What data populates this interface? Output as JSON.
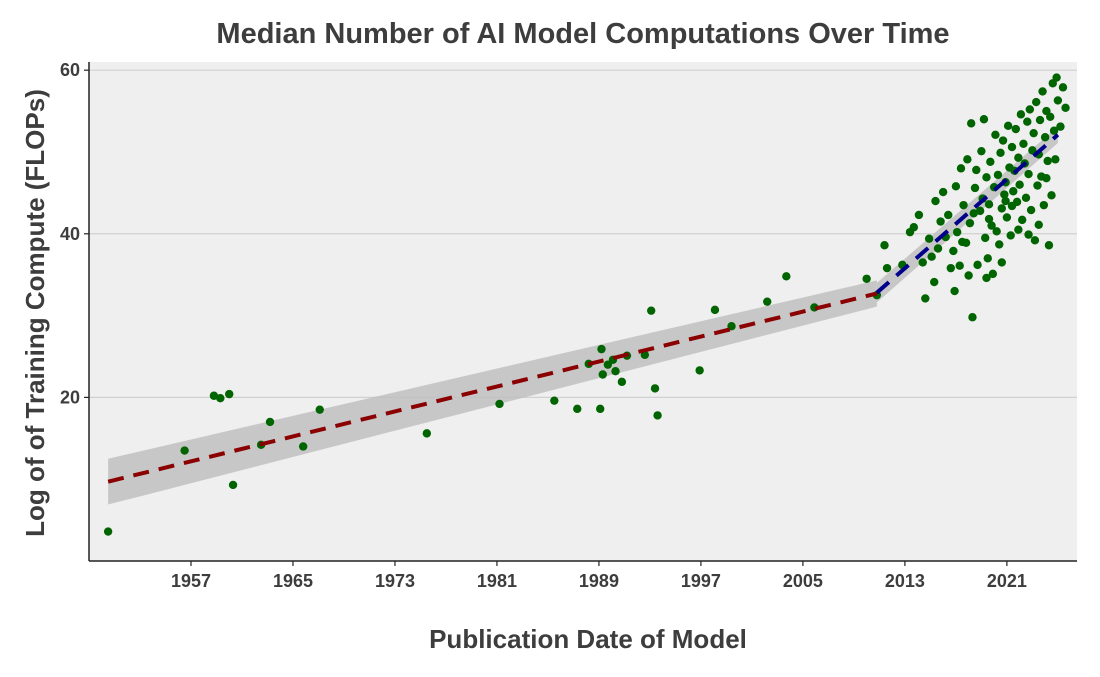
{
  "chart_data": {
    "type": "scatter",
    "title": "Median Number of AI Model Computations Over Time",
    "xlabel": "Publication Date of Model",
    "ylabel": "Log of of Training Compute (FLOPs)",
    "x_ticks": [
      "1957",
      "1965",
      "1973",
      "1981",
      "1989",
      "1997",
      "2005",
      "2013",
      "2021"
    ],
    "y_ticks": [
      "20",
      "40",
      "60"
    ],
    "xlim": [
      1949,
      2026.5
    ],
    "ylim": [
      0,
      61
    ],
    "grid": "horizontal",
    "colors": {
      "background": "#efefef",
      "grid": "#d0d0d0",
      "points": "#006400",
      "trend_early": "#8b0000",
      "trend_recent": "#00008b",
      "confidence_band": "#c0c0c0"
    },
    "series": [
      {
        "type": "scatter",
        "points": [
          [
            1950.5,
            3.6
          ],
          [
            1956.5,
            13.5
          ],
          [
            1958.8,
            20.2
          ],
          [
            1959.3,
            19.9
          ],
          [
            1960.0,
            20.4
          ],
          [
            1960.3,
            9.3
          ],
          [
            1962.5,
            14.2
          ],
          [
            1963.2,
            17.0
          ],
          [
            1965.8,
            14.0
          ],
          [
            1967.1,
            18.5
          ],
          [
            1975.5,
            15.6
          ],
          [
            1981.2,
            19.2
          ],
          [
            1985.5,
            19.6
          ],
          [
            1987.3,
            18.6
          ],
          [
            1988.2,
            24.1
          ],
          [
            1989.1,
            18.6
          ],
          [
            1989.2,
            25.9
          ],
          [
            1989.3,
            22.8
          ],
          [
            1989.7,
            24.0
          ],
          [
            1990.1,
            24.6
          ],
          [
            1990.3,
            23.2
          ],
          [
            1990.8,
            21.9
          ],
          [
            1991.2,
            25.1
          ],
          [
            1992.6,
            25.2
          ],
          [
            1993.1,
            30.6
          ],
          [
            1993.4,
            21.1
          ],
          [
            1993.6,
            17.8
          ],
          [
            1996.9,
            23.3
          ],
          [
            1998.1,
            30.7
          ],
          [
            1999.4,
            28.7
          ],
          [
            2002.2,
            31.7
          ],
          [
            2003.7,
            34.8
          ],
          [
            2005.9,
            31.0
          ],
          [
            2010.0,
            34.5
          ],
          [
            2010.8,
            32.5
          ],
          [
            2011.4,
            38.6
          ],
          [
            2011.6,
            35.8
          ],
          [
            2012.8,
            36.2
          ],
          [
            2013.4,
            40.2
          ],
          [
            2013.7,
            40.8
          ],
          [
            2014.1,
            42.3
          ],
          [
            2014.4,
            36.5
          ],
          [
            2014.6,
            32.1
          ],
          [
            2014.9,
            39.4
          ],
          [
            2015.1,
            37.2
          ],
          [
            2015.3,
            34.1
          ],
          [
            2015.4,
            44.0
          ],
          [
            2015.6,
            38.2
          ],
          [
            2015.8,
            41.5
          ],
          [
            2016.0,
            45.1
          ],
          [
            2016.2,
            39.6
          ],
          [
            2016.4,
            42.3
          ],
          [
            2016.6,
            35.8
          ],
          [
            2016.8,
            37.9
          ],
          [
            2017.0,
            45.8
          ],
          [
            2017.1,
            40.2
          ],
          [
            2017.3,
            36.1
          ],
          [
            2017.4,
            48.0
          ],
          [
            2017.6,
            43.5
          ],
          [
            2017.8,
            38.9
          ],
          [
            2017.9,
            49.1
          ],
          [
            2018.1,
            41.3
          ],
          [
            2018.2,
            53.5
          ],
          [
            2018.3,
            29.8
          ],
          [
            2018.5,
            45.6
          ],
          [
            2018.6,
            47.8
          ],
          [
            2018.7,
            36.2
          ],
          [
            2018.9,
            42.8
          ],
          [
            2019.0,
            50.1
          ],
          [
            2019.1,
            44.3
          ],
          [
            2019.2,
            54.0
          ],
          [
            2019.3,
            39.5
          ],
          [
            2019.4,
            46.9
          ],
          [
            2019.5,
            37.0
          ],
          [
            2019.6,
            43.6
          ],
          [
            2019.7,
            48.8
          ],
          [
            2019.8,
            41.0
          ],
          [
            2019.9,
            35.1
          ],
          [
            2020.0,
            45.7
          ],
          [
            2020.1,
            52.1
          ],
          [
            2020.2,
            40.3
          ],
          [
            2020.3,
            47.2
          ],
          [
            2020.4,
            38.7
          ],
          [
            2020.5,
            49.9
          ],
          [
            2020.6,
            43.1
          ],
          [
            2020.7,
            51.4
          ],
          [
            2020.8,
            44.8
          ],
          [
            2020.9,
            46.3
          ],
          [
            2021.0,
            42.0
          ],
          [
            2021.1,
            53.2
          ],
          [
            2021.2,
            48.1
          ],
          [
            2021.3,
            39.8
          ],
          [
            2021.4,
            50.6
          ],
          [
            2021.5,
            45.2
          ],
          [
            2021.6,
            47.7
          ],
          [
            2021.7,
            52.8
          ],
          [
            2021.8,
            43.9
          ],
          [
            2021.9,
            49.3
          ],
          [
            2022.0,
            46.0
          ],
          [
            2022.1,
            54.6
          ],
          [
            2022.2,
            41.7
          ],
          [
            2022.3,
            51.0
          ],
          [
            2022.4,
            48.6
          ],
          [
            2022.5,
            44.4
          ],
          [
            2022.6,
            53.7
          ],
          [
            2022.7,
            47.3
          ],
          [
            2022.8,
            55.2
          ],
          [
            2022.9,
            42.9
          ],
          [
            2023.0,
            50.2
          ],
          [
            2023.1,
            52.3
          ],
          [
            2023.2,
            39.2
          ],
          [
            2023.3,
            56.1
          ],
          [
            2023.4,
            45.9
          ],
          [
            2023.5,
            49.7
          ],
          [
            2023.6,
            53.9
          ],
          [
            2023.7,
            47.0
          ],
          [
            2023.8,
            57.4
          ],
          [
            2023.9,
            43.5
          ],
          [
            2024.0,
            51.8
          ],
          [
            2024.1,
            55.0
          ],
          [
            2024.2,
            48.9
          ],
          [
            2024.3,
            38.6
          ],
          [
            2024.4,
            54.3
          ],
          [
            2024.5,
            44.7
          ],
          [
            2024.6,
            58.4
          ],
          [
            2024.7,
            52.6
          ],
          [
            2024.8,
            49.1
          ],
          [
            2024.9,
            59.1
          ],
          [
            2025.0,
            56.3
          ],
          [
            2025.2,
            53.1
          ],
          [
            2025.4,
            57.9
          ],
          [
            2025.6,
            55.4
          ],
          [
            2019.4,
            34.6
          ],
          [
            2018.0,
            34.9
          ],
          [
            2020.6,
            36.5
          ],
          [
            2016.9,
            33.0
          ],
          [
            2019.6,
            41.8
          ],
          [
            2021.9,
            40.5
          ],
          [
            2022.7,
            39.9
          ],
          [
            2018.4,
            42.5
          ],
          [
            2020.9,
            44.0
          ],
          [
            2017.5,
            39.0
          ],
          [
            2021.4,
            43.4
          ],
          [
            2023.5,
            41.1
          ],
          [
            2024.1,
            46.8
          ]
        ]
      },
      {
        "type": "trend",
        "name": "",
        "x_range": [
          1950.5,
          2010.8
        ],
        "y_range": [
          9.7,
          32.7
        ],
        "band_half_width": [
          2.8,
          1.6
        ]
      },
      {
        "type": "trend",
        "name": "",
        "x_range": [
          2010.8,
          2025.0
        ],
        "y_range": [
          32.8,
          52.1
        ],
        "band_half_width": [
          1.2,
          1.0
        ]
      }
    ]
  }
}
